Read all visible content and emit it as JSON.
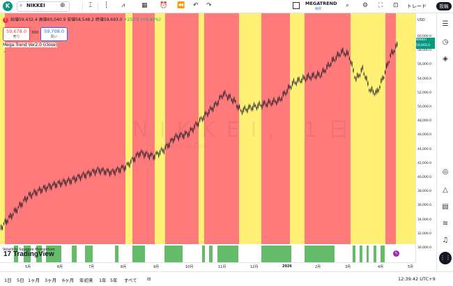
{
  "topbar": {
    "logo_letter": "K",
    "symbol": "NIKKEI",
    "layout_name": "MEGATREND",
    "layout_status": "保存",
    "trade_label": "トレード",
    "post_label": "投稿"
  },
  "info": {
    "ohlc_text": "始値59,432.4 高値60,040.9 安値58,548.2 終値59,693.0",
    "change_text": "+257.5 (+0.43%)"
  },
  "order": {
    "sell_price": "59,678.0",
    "sell_label": "売り",
    "spread": "300",
    "buy_price": "59,708.0",
    "buy_label": "買い"
  },
  "indicator": {
    "name": "Mega Trend Ver2.0 (close)",
    "subpanel_name": "Volatility Squeeze Momentum"
  },
  "watermark": {
    "symbol_text": "NIKKEI, 1日",
    "desc_text": "Japan 225 Cash"
  },
  "colors": {
    "red_band": "#ff7b7b",
    "yellow_band": "#fff176",
    "green_hist": "#66bb6a",
    "candle": "#131722",
    "price_tag": "#089981"
  },
  "price_axis": {
    "currency": "USD",
    "ticks": [
      "60,000.0",
      "58,000.0",
      "56,000.0",
      "54,000.0",
      "52,000.0",
      "50,000.0",
      "48,000.0",
      "46,000.0",
      "44,000.0",
      "42,000.0",
      "40,000.0",
      "38,000.0",
      "36,000.0",
      "34,000.0",
      "32,000.0",
      "30,000.0"
    ],
    "current_symbol": "NIKKEI",
    "current_price": "59,693.0"
  },
  "time_axis": {
    "ticks": [
      "5月",
      "6月",
      "7月",
      "8月",
      "9月",
      "10月",
      "11月",
      "12月",
      "2026",
      "2月",
      "3月",
      "4月",
      "5月"
    ]
  },
  "bottombar": {
    "ranges": [
      "1日",
      "5日",
      "1ヶ月",
      "3ヶ月",
      "6ヶ月",
      "年初来",
      "1年",
      "5年",
      "すべて"
    ],
    "clock": "12:39:42 UTC+9"
  }
}
